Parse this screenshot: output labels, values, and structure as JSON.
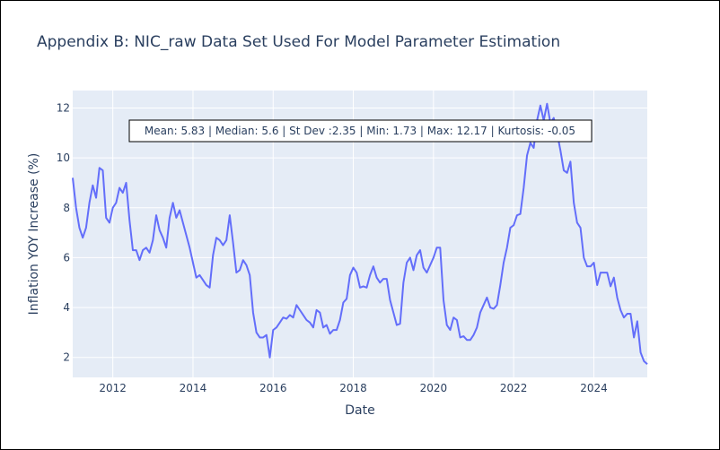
{
  "colors": {
    "plot_bg": "#E5ECF6",
    "grid": "#ffffff",
    "line": "#636EFA",
    "text": "#2a3f5f"
  },
  "chart_data": {
    "type": "line",
    "title": "Appendix B: NIC_raw Data Set Used For Model Parameter Estimation",
    "xlabel": "Date",
    "ylabel": "Inflation YOY Increase (%)",
    "xlim": [
      "2011-01",
      "2025-05"
    ],
    "ylim": [
      1.2,
      12.7
    ],
    "xticks": [
      {
        "value": "2012-01",
        "label": "2012"
      },
      {
        "value": "2014-01",
        "label": "2014"
      },
      {
        "value": "2016-01",
        "label": "2016"
      },
      {
        "value": "2018-01",
        "label": "2018"
      },
      {
        "value": "2020-01",
        "label": "2020"
      },
      {
        "value": "2022-01",
        "label": "2022"
      },
      {
        "value": "2024-01",
        "label": "2024"
      }
    ],
    "yticks": [
      {
        "value": 2,
        "label": "2"
      },
      {
        "value": 4,
        "label": "4"
      },
      {
        "value": 6,
        "label": "6"
      },
      {
        "value": 8,
        "label": "8"
      },
      {
        "value": 10,
        "label": "10"
      },
      {
        "value": 12,
        "label": "12"
      }
    ],
    "grid": true,
    "annotation": "Mean: 5.83 | Median: 5.6 | St Dev :2.35 | Min: 1.73 | Max: 12.17 | Kurtosis: -0.05",
    "series": [
      {
        "points": [
          [
            "2011-01",
            9.2
          ],
          [
            "2011-02",
            8.0
          ],
          [
            "2011-03",
            7.2
          ],
          [
            "2011-04",
            6.8
          ],
          [
            "2011-05",
            7.2
          ],
          [
            "2011-06",
            8.2
          ],
          [
            "2011-07",
            8.9
          ],
          [
            "2011-08",
            8.4
          ],
          [
            "2011-09",
            9.6
          ],
          [
            "2011-10",
            9.5
          ],
          [
            "2011-11",
            7.6
          ],
          [
            "2011-12",
            7.4
          ],
          [
            "2012-01",
            8.0
          ],
          [
            "2012-02",
            8.2
          ],
          [
            "2012-03",
            8.8
          ],
          [
            "2012-04",
            8.6
          ],
          [
            "2012-05",
            9.0
          ],
          [
            "2012-06",
            7.5
          ],
          [
            "2012-07",
            6.3
          ],
          [
            "2012-08",
            6.3
          ],
          [
            "2012-09",
            5.9
          ],
          [
            "2012-10",
            6.3
          ],
          [
            "2012-11",
            6.4
          ],
          [
            "2012-12",
            6.2
          ],
          [
            "2013-01",
            6.7
          ],
          [
            "2013-02",
            7.7
          ],
          [
            "2013-03",
            7.1
          ],
          [
            "2013-04",
            6.8
          ],
          [
            "2013-05",
            6.4
          ],
          [
            "2013-06",
            7.6
          ],
          [
            "2013-07",
            8.2
          ],
          [
            "2013-08",
            7.6
          ],
          [
            "2013-09",
            7.9
          ],
          [
            "2013-10",
            7.4
          ],
          [
            "2013-11",
            6.9
          ],
          [
            "2013-12",
            6.4
          ],
          [
            "2014-01",
            5.8
          ],
          [
            "2014-02",
            5.2
          ],
          [
            "2014-03",
            5.3
          ],
          [
            "2014-04",
            5.1
          ],
          [
            "2014-05",
            4.9
          ],
          [
            "2014-06",
            4.8
          ],
          [
            "2014-07",
            6.1
          ],
          [
            "2014-08",
            6.8
          ],
          [
            "2014-09",
            6.7
          ],
          [
            "2014-10",
            6.5
          ],
          [
            "2014-11",
            6.7
          ],
          [
            "2014-12",
            7.7
          ],
          [
            "2015-01",
            6.6
          ],
          [
            "2015-02",
            5.4
          ],
          [
            "2015-03",
            5.5
          ],
          [
            "2015-04",
            5.9
          ],
          [
            "2015-05",
            5.7
          ],
          [
            "2015-06",
            5.3
          ],
          [
            "2015-07",
            3.8
          ],
          [
            "2015-08",
            3.0
          ],
          [
            "2015-09",
            2.8
          ],
          [
            "2015-10",
            2.8
          ],
          [
            "2015-11",
            2.9
          ],
          [
            "2015-12",
            2.0
          ],
          [
            "2016-01",
            3.1
          ],
          [
            "2016-02",
            3.2
          ],
          [
            "2016-03",
            3.4
          ],
          [
            "2016-04",
            3.6
          ],
          [
            "2016-05",
            3.55
          ],
          [
            "2016-06",
            3.7
          ],
          [
            "2016-07",
            3.6
          ],
          [
            "2016-08",
            4.1
          ],
          [
            "2016-09",
            3.9
          ],
          [
            "2016-10",
            3.7
          ],
          [
            "2016-11",
            3.5
          ],
          [
            "2016-12",
            3.4
          ],
          [
            "2017-01",
            3.2
          ],
          [
            "2017-02",
            3.9
          ],
          [
            "2017-03",
            3.8
          ],
          [
            "2017-04",
            3.2
          ],
          [
            "2017-05",
            3.3
          ],
          [
            "2017-06",
            2.95
          ],
          [
            "2017-07",
            3.1
          ],
          [
            "2017-08",
            3.1
          ],
          [
            "2017-09",
            3.5
          ],
          [
            "2017-10",
            4.2
          ],
          [
            "2017-11",
            4.35
          ],
          [
            "2017-12",
            5.3
          ],
          [
            "2018-01",
            5.6
          ],
          [
            "2018-02",
            5.4
          ],
          [
            "2018-03",
            4.8
          ],
          [
            "2018-04",
            4.85
          ],
          [
            "2018-05",
            4.8
          ],
          [
            "2018-06",
            5.3
          ],
          [
            "2018-07",
            5.65
          ],
          [
            "2018-08",
            5.2
          ],
          [
            "2018-09",
            5.0
          ],
          [
            "2018-10",
            5.15
          ],
          [
            "2018-11",
            5.15
          ],
          [
            "2018-12",
            4.3
          ],
          [
            "2019-01",
            3.8
          ],
          [
            "2019-02",
            3.3
          ],
          [
            "2019-03",
            3.35
          ],
          [
            "2019-04",
            5.0
          ],
          [
            "2019-05",
            5.8
          ],
          [
            "2019-06",
            6.0
          ],
          [
            "2019-07",
            5.5
          ],
          [
            "2019-08",
            6.1
          ],
          [
            "2019-09",
            6.3
          ],
          [
            "2019-10",
            5.6
          ],
          [
            "2019-11",
            5.4
          ],
          [
            "2019-12",
            5.7
          ],
          [
            "2020-01",
            6.0
          ],
          [
            "2020-02",
            6.4
          ],
          [
            "2020-03",
            6.4
          ],
          [
            "2020-04",
            4.3
          ],
          [
            "2020-05",
            3.3
          ],
          [
            "2020-06",
            3.1
          ],
          [
            "2020-07",
            3.6
          ],
          [
            "2020-08",
            3.5
          ],
          [
            "2020-09",
            2.8
          ],
          [
            "2020-10",
            2.85
          ],
          [
            "2020-11",
            2.7
          ],
          [
            "2020-12",
            2.7
          ],
          [
            "2021-01",
            2.9
          ],
          [
            "2021-02",
            3.2
          ],
          [
            "2021-03",
            3.8
          ],
          [
            "2021-04",
            4.1
          ],
          [
            "2021-05",
            4.4
          ],
          [
            "2021-06",
            4.0
          ],
          [
            "2021-07",
            3.95
          ],
          [
            "2021-08",
            4.1
          ],
          [
            "2021-09",
            4.9
          ],
          [
            "2021-10",
            5.8
          ],
          [
            "2021-11",
            6.4
          ],
          [
            "2021-12",
            7.2
          ],
          [
            "2022-01",
            7.3
          ],
          [
            "2022-02",
            7.7
          ],
          [
            "2022-03",
            7.75
          ],
          [
            "2022-04",
            8.8
          ],
          [
            "2022-05",
            10.1
          ],
          [
            "2022-06",
            10.6
          ],
          [
            "2022-07",
            10.4
          ],
          [
            "2022-08",
            11.5
          ],
          [
            "2022-09",
            12.1
          ],
          [
            "2022-10",
            11.5
          ],
          [
            "2022-11",
            12.17
          ],
          [
            "2022-12",
            11.4
          ],
          [
            "2023-01",
            11.6
          ],
          [
            "2023-02",
            11.0
          ],
          [
            "2023-03",
            10.3
          ],
          [
            "2023-04",
            9.5
          ],
          [
            "2023-05",
            9.4
          ],
          [
            "2023-06",
            9.85
          ],
          [
            "2023-07",
            8.2
          ],
          [
            "2023-08",
            7.4
          ],
          [
            "2023-09",
            7.2
          ],
          [
            "2023-10",
            6.0
          ],
          [
            "2023-11",
            5.65
          ],
          [
            "2023-12",
            5.65
          ],
          [
            "2024-01",
            5.8
          ],
          [
            "2024-02",
            4.9
          ],
          [
            "2024-03",
            5.4
          ],
          [
            "2024-04",
            5.4
          ],
          [
            "2024-05",
            5.4
          ],
          [
            "2024-06",
            4.85
          ],
          [
            "2024-07",
            5.2
          ],
          [
            "2024-08",
            4.4
          ],
          [
            "2024-09",
            3.9
          ],
          [
            "2024-10",
            3.6
          ],
          [
            "2024-11",
            3.75
          ],
          [
            "2024-12",
            3.75
          ],
          [
            "2025-01",
            2.8
          ],
          [
            "2025-02",
            3.45
          ],
          [
            "2025-03",
            2.2
          ],
          [
            "2025-04",
            1.85
          ],
          [
            "2025-05",
            1.73
          ]
        ]
      }
    ]
  }
}
